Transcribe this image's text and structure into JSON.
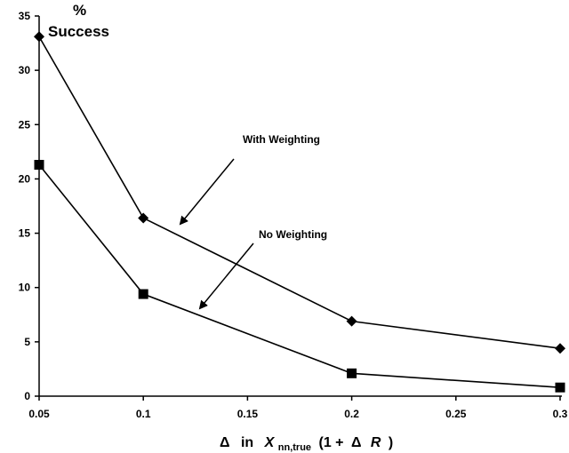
{
  "chart_data": {
    "type": "line",
    "x": [
      0.05,
      0.1,
      0.2,
      0.3
    ],
    "xlim": [
      0.05,
      0.3
    ],
    "xticks": [
      "0.05",
      "0.1",
      "0.15",
      "0.2",
      "0.25",
      "0.3"
    ],
    "ylim": [
      0,
      35
    ],
    "yticks": [
      "0",
      "5",
      "10",
      "15",
      "20",
      "25",
      "30",
      "35"
    ],
    "ylabel": {
      "line1": "%",
      "line2": "Success"
    },
    "xlabel": {
      "delta1": "Δ",
      "in": "in",
      "var": "X",
      "sub": "nn,true",
      "open": "(1 +",
      "delta2": "Δ",
      "r": "R",
      "close": ")"
    },
    "series": [
      {
        "marker": "diamond",
        "values": [
          33.1,
          16.4,
          6.9,
          4.4
        ]
      },
      {
        "marker": "square",
        "values": [
          21.3,
          9.4,
          2.1,
          0.8
        ]
      }
    ],
    "annotations": [
      {
        "text": "With Weighting",
        "series": 0
      },
      {
        "text": "No Weighting",
        "series": 1
      }
    ],
    "grid": false,
    "legend": "none"
  },
  "colors": {
    "line": "#000000",
    "background": "#ffffff"
  }
}
